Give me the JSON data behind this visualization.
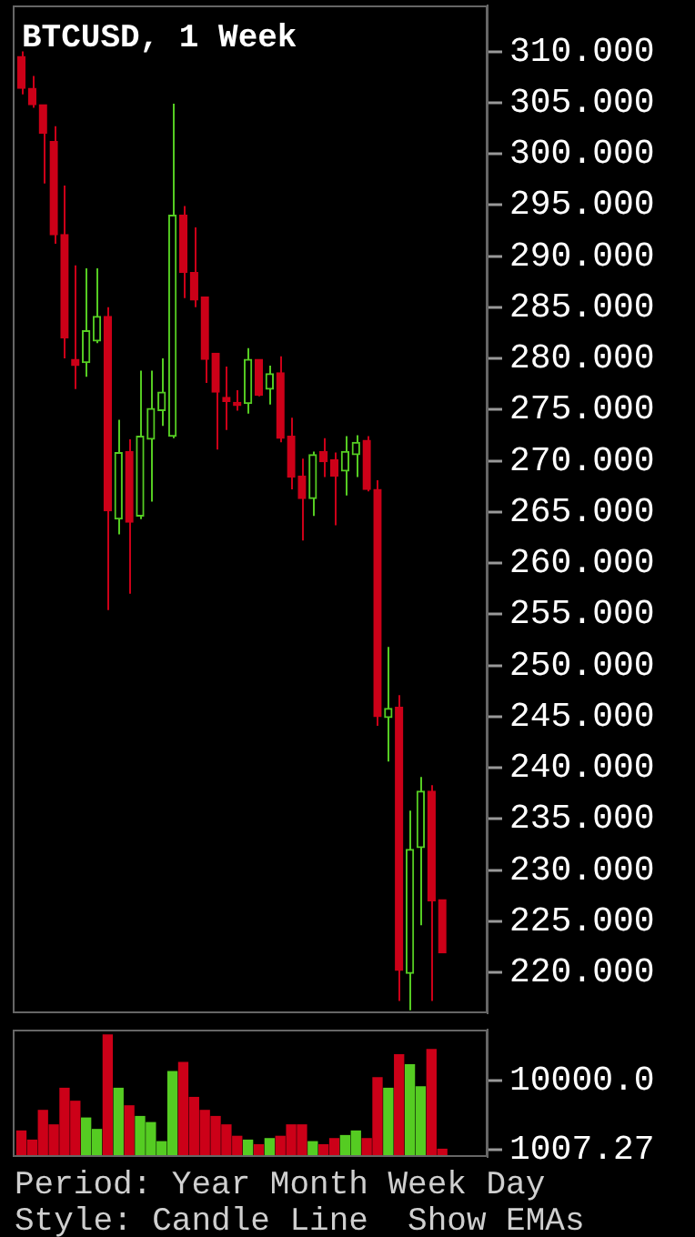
{
  "chart_data": [
    {
      "type": "candlestick",
      "title": "BTCUSD, 1 Week",
      "tick_labels": "y",
      "categories": [
        null,
        null,
        null,
        null,
        null,
        null,
        null,
        null,
        null,
        null,
        null,
        null,
        null,
        null,
        null,
        null,
        null,
        null,
        null,
        null,
        null,
        null,
        null,
        null,
        null,
        null,
        null,
        null,
        null,
        null,
        null,
        null,
        null,
        null,
        null,
        null,
        null,
        null,
        null,
        null
      ],
      "ohlc": [
        [
          309.5,
          310.0,
          305.8,
          306.4
        ],
        [
          306.4,
          307.6,
          304.5,
          304.8
        ],
        [
          304.8,
          304.8,
          297.1,
          302.0
        ],
        [
          301.2,
          302.7,
          291.2,
          292.1
        ],
        [
          292.1,
          296.9,
          280.0,
          282.0
        ],
        [
          279.9,
          289.1,
          277.0,
          279.3
        ],
        [
          279.6,
          288.8,
          278.2,
          282.7
        ],
        [
          281.7,
          288.8,
          281.5,
          284.1
        ],
        [
          284.1,
          285.0,
          255.4,
          265.1
        ],
        [
          264.3,
          274.0,
          262.8,
          270.8
        ],
        [
          270.9,
          272.1,
          257.0,
          264.0
        ],
        [
          264.6,
          278.8,
          264.3,
          272.4
        ],
        [
          272.1,
          278.8,
          266.0,
          275.1
        ],
        [
          274.9,
          280.0,
          273.4,
          276.7
        ],
        [
          272.4,
          304.9,
          272.2,
          294.0
        ],
        [
          294.0,
          294.9,
          285.9,
          288.4
        ],
        [
          288.4,
          292.8,
          285.0,
          285.7
        ],
        [
          286.0,
          286.0,
          277.6,
          279.9
        ],
        [
          280.5,
          280.5,
          271.1,
          276.7
        ],
        [
          276.2,
          279.2,
          273.0,
          275.8
        ],
        [
          275.7,
          276.9,
          274.9,
          275.4
        ],
        [
          275.6,
          281.0,
          274.6,
          279.9
        ],
        [
          279.9,
          279.9,
          276.3,
          276.4
        ],
        [
          277.0,
          279.3,
          275.5,
          278.5
        ],
        [
          278.6,
          280.2,
          271.8,
          272.2
        ],
        [
          272.4,
          274.2,
          267.2,
          268.4
        ],
        [
          268.5,
          270.2,
          262.2,
          266.3
        ],
        [
          266.3,
          270.9,
          264.6,
          270.6
        ],
        [
          270.9,
          272.2,
          268.4,
          269.9
        ],
        [
          270.1,
          270.8,
          263.7,
          268.5
        ],
        [
          269.0,
          272.4,
          266.6,
          270.9
        ],
        [
          270.6,
          272.5,
          268.4,
          271.8
        ],
        [
          272.0,
          272.4,
          267.0,
          267.2
        ],
        [
          267.2,
          268.1,
          244.1,
          245.0
        ],
        [
          244.9,
          251.8,
          240.6,
          245.8
        ],
        [
          245.9,
          247.1,
          217.2,
          220.2
        ],
        [
          219.9,
          235.8,
          216.3,
          232.0
        ],
        [
          232.2,
          239.1,
          224.6,
          237.7
        ],
        [
          237.7,
          238.3,
          217.2,
          227.0
        ],
        [
          227.1,
          227.1,
          221.9,
          221.9
        ]
      ],
      "colors": [
        "#cc0018",
        "#cc0018",
        "#cc0018",
        "#cc0018",
        "#cc0018",
        "#cc0018",
        "#55cc22",
        "#55cc22",
        "#cc0018",
        "#55cc22",
        "#cc0018",
        "#55cc22",
        "#55cc22",
        "#55cc22",
        "#55cc22",
        "#cc0018",
        "#cc0018",
        "#cc0018",
        "#cc0018",
        "#cc0018",
        "#cc0018",
        "#55cc22",
        "#cc0018",
        "#55cc22",
        "#cc0018",
        "#cc0018",
        "#cc0018",
        "#55cc22",
        "#cc0018",
        "#cc0018",
        "#55cc22",
        "#55cc22",
        "#cc0018",
        "#cc0018",
        "#55cc22",
        "#cc0018",
        "#55cc22",
        "#55cc22",
        "#cc0018",
        "#cc0018"
      ],
      "ylim": [
        216,
        314.5
      ],
      "yticks": [
        {
          "value": 220,
          "label": "220.000"
        },
        {
          "value": 225,
          "label": "225.000"
        },
        {
          "value": 230,
          "label": "230.000"
        },
        {
          "value": 235,
          "label": "235.000"
        },
        {
          "value": 240,
          "label": "240.000"
        },
        {
          "value": 245,
          "label": "245.000"
        },
        {
          "value": 250,
          "label": "250.000"
        },
        {
          "value": 255,
          "label": "255.000"
        },
        {
          "value": 260,
          "label": "260.000"
        },
        {
          "value": 265,
          "label": "265.000"
        },
        {
          "value": 270,
          "label": "270.000"
        },
        {
          "value": 275,
          "label": "275.000"
        },
        {
          "value": 280,
          "label": "280.000"
        },
        {
          "value": 285,
          "label": "285.000"
        },
        {
          "value": 290,
          "label": "290.000"
        },
        {
          "value": 295,
          "label": "295.000"
        },
        {
          "value": 300,
          "label": "300.000"
        },
        {
          "value": 305,
          "label": "305.000"
        },
        {
          "value": 310,
          "label": "310.000"
        }
      ]
    },
    {
      "type": "bar",
      "tick_labels": "y",
      "categories": [
        null,
        null,
        null,
        null,
        null,
        null,
        null,
        null,
        null,
        null,
        null,
        null,
        null,
        null,
        null,
        null,
        null,
        null,
        null,
        null,
        null,
        null,
        null,
        null,
        null,
        null,
        null,
        null,
        null,
        null,
        null,
        null,
        null,
        null,
        null,
        null,
        null,
        null,
        null,
        null
      ],
      "values": [
        3400,
        2200,
        6100,
        4200,
        9000,
        7300,
        5100,
        3600,
        16000,
        9000,
        6700,
        5300,
        4500,
        2000,
        11200,
        12400,
        7800,
        6100,
        5300,
        4200,
        2700,
        2200,
        1600,
        2400,
        2700,
        4200,
        4200,
        2000,
        1600,
        2400,
        2800,
        3400,
        2400,
        10400,
        9000,
        13400,
        12100,
        9200,
        14100,
        1007.27
      ],
      "colors": [
        "#cc0018",
        "#cc0018",
        "#cc0018",
        "#cc0018",
        "#cc0018",
        "#cc0018",
        "#55cc22",
        "#55cc22",
        "#cc0018",
        "#55cc22",
        "#cc0018",
        "#55cc22",
        "#55cc22",
        "#55cc22",
        "#55cc22",
        "#cc0018",
        "#cc0018",
        "#cc0018",
        "#cc0018",
        "#cc0018",
        "#cc0018",
        "#55cc22",
        "#cc0018",
        "#55cc22",
        "#cc0018",
        "#cc0018",
        "#cc0018",
        "#55cc22",
        "#cc0018",
        "#cc0018",
        "#55cc22",
        "#55cc22",
        "#cc0018",
        "#cc0018",
        "#55cc22",
        "#cc0018",
        "#55cc22",
        "#55cc22",
        "#cc0018",
        "#cc0018"
      ],
      "ylim": [
        0,
        16700
      ],
      "yticks": [
        {
          "value": 1007.27,
          "label": "1007.27"
        },
        {
          "value": 10000,
          "label": "10000.0"
        }
      ],
      "annotations": [
        "Period: Year Month Week Day",
        "Style: Candle Line  Show EMAs"
      ]
    }
  ]
}
